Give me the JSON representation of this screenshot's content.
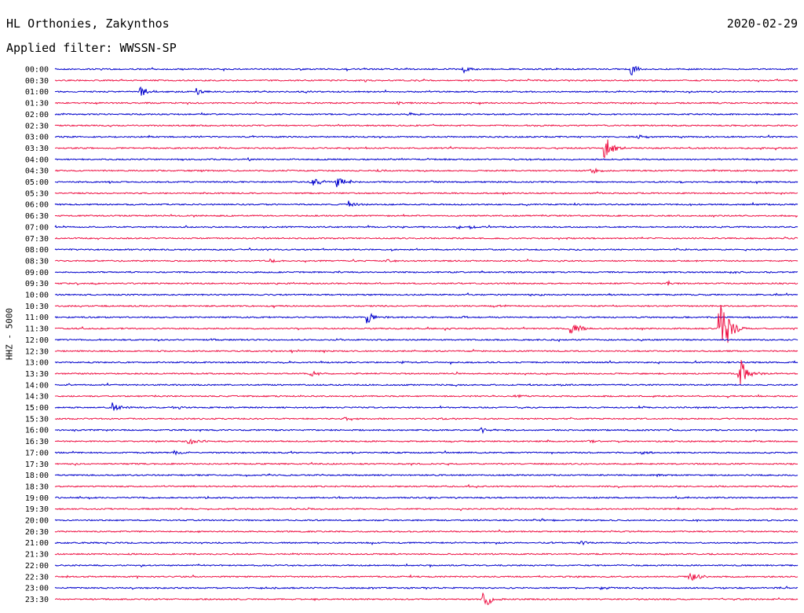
{
  "header": {
    "station": "HL Orthonies, Zakynthos",
    "date": "2020-02-29",
    "filter": "Applied filter: WWSSN-SP"
  },
  "chart_data": {
    "type": "line",
    "ylabel": "HHZ - 5000",
    "trace_colors": [
      "#0000cc",
      "#ee1144"
    ],
    "rows": [
      {
        "label": "00:00",
        "color": "#0000cc",
        "events": [
          {
            "x": 0.55,
            "amp": 4
          },
          {
            "x": 0.775,
            "amp": 9
          }
        ]
      },
      {
        "label": "00:30",
        "color": "#ee1144",
        "events": []
      },
      {
        "label": "01:00",
        "color": "#0000cc",
        "events": [
          {
            "x": 0.115,
            "amp": 7
          },
          {
            "x": 0.19,
            "amp": 5
          }
        ]
      },
      {
        "label": "01:30",
        "color": "#ee1144",
        "events": [
          {
            "x": 0.46,
            "amp": 3
          }
        ]
      },
      {
        "label": "02:00",
        "color": "#0000cc",
        "events": [
          {
            "x": 0.475,
            "amp": 2
          }
        ]
      },
      {
        "label": "02:30",
        "color": "#ee1144",
        "events": [
          {
            "x": 0.645,
            "amp": 2
          }
        ]
      },
      {
        "label": "03:00",
        "color": "#0000cc",
        "events": [
          {
            "x": 0.785,
            "amp": 3
          }
        ]
      },
      {
        "label": "03:30",
        "color": "#ee1144",
        "events": [
          {
            "x": 0.74,
            "amp": 18
          }
        ]
      },
      {
        "label": "04:00",
        "color": "#0000cc",
        "events": []
      },
      {
        "label": "04:30",
        "color": "#ee1144",
        "events": [
          {
            "x": 0.435,
            "amp": 2
          },
          {
            "x": 0.722,
            "amp": 4
          }
        ]
      },
      {
        "label": "05:00",
        "color": "#0000cc",
        "events": [
          {
            "x": 0.345,
            "amp": 9
          },
          {
            "x": 0.38,
            "amp": 8
          },
          {
            "x": 0.84,
            "amp": 3
          }
        ]
      },
      {
        "label": "05:30",
        "color": "#ee1144",
        "events": []
      },
      {
        "label": "06:00",
        "color": "#0000cc",
        "events": [
          {
            "x": 0.395,
            "amp": 5
          }
        ]
      },
      {
        "label": "06:30",
        "color": "#ee1144",
        "events": []
      },
      {
        "label": "07:00",
        "color": "#0000cc",
        "events": [
          {
            "x": 0.54,
            "amp": 3
          },
          {
            "x": 0.56,
            "amp": 3
          }
        ]
      },
      {
        "label": "07:30",
        "color": "#ee1144",
        "events": [
          {
            "x": 0.98,
            "amp": 2
          }
        ]
      },
      {
        "label": "08:00",
        "color": "#0000cc",
        "events": []
      },
      {
        "label": "08:30",
        "color": "#ee1144",
        "events": [
          {
            "x": 0.29,
            "amp": 3
          },
          {
            "x": 0.445,
            "amp": 2
          }
        ]
      },
      {
        "label": "09:00",
        "color": "#0000cc",
        "events": [
          {
            "x": 0.91,
            "amp": 2
          }
        ]
      },
      {
        "label": "09:30",
        "color": "#ee1144",
        "events": [
          {
            "x": 0.825,
            "amp": 3
          }
        ]
      },
      {
        "label": "10:00",
        "color": "#0000cc",
        "events": []
      },
      {
        "label": "10:30",
        "color": "#ee1144",
        "events": []
      },
      {
        "label": "11:00",
        "color": "#0000cc",
        "events": [
          {
            "x": 0.42,
            "amp": 8
          },
          {
            "x": 0.545,
            "amp": 2
          }
        ]
      },
      {
        "label": "11:30",
        "color": "#ee1144",
        "events": [
          {
            "x": 0.695,
            "amp": 12
          },
          {
            "x": 0.895,
            "amp": 64
          }
        ]
      },
      {
        "label": "12:00",
        "color": "#0000cc",
        "events": [
          {
            "x": 0.21,
            "amp": 2
          }
        ]
      },
      {
        "label": "12:30",
        "color": "#ee1144",
        "events": []
      },
      {
        "label": "13:00",
        "color": "#0000cc",
        "events": [
          {
            "x": 0.465,
            "amp": 2
          }
        ]
      },
      {
        "label": "13:30",
        "color": "#ee1144",
        "events": [
          {
            "x": 0.345,
            "amp": 5
          },
          {
            "x": 0.922,
            "amp": 24
          }
        ]
      },
      {
        "label": "14:00",
        "color": "#0000cc",
        "events": []
      },
      {
        "label": "14:30",
        "color": "#ee1144",
        "events": [
          {
            "x": 0.62,
            "amp": 2
          }
        ]
      },
      {
        "label": "15:00",
        "color": "#0000cc",
        "events": [
          {
            "x": 0.077,
            "amp": 7
          },
          {
            "x": 0.16,
            "amp": 3
          }
        ]
      },
      {
        "label": "15:30",
        "color": "#ee1144",
        "events": [
          {
            "x": 0.39,
            "amp": 2
          },
          {
            "x": 0.52,
            "amp": 2
          }
        ]
      },
      {
        "label": "16:00",
        "color": "#0000cc",
        "events": [
          {
            "x": 0.575,
            "amp": 4
          }
        ]
      },
      {
        "label": "16:30",
        "color": "#ee1144",
        "events": [
          {
            "x": 0.18,
            "amp": 4
          },
          {
            "x": 0.72,
            "amp": 3
          }
        ]
      },
      {
        "label": "17:00",
        "color": "#0000cc",
        "events": [
          {
            "x": 0.16,
            "amp": 3
          },
          {
            "x": 0.79,
            "amp": 2
          }
        ]
      },
      {
        "label": "17:30",
        "color": "#ee1144",
        "events": []
      },
      {
        "label": "18:00",
        "color": "#0000cc",
        "events": [
          {
            "x": 0.81,
            "amp": 2
          }
        ]
      },
      {
        "label": "18:30",
        "color": "#ee1144",
        "events": []
      },
      {
        "label": "19:00",
        "color": "#0000cc",
        "events": []
      },
      {
        "label": "19:30",
        "color": "#ee1144",
        "events": []
      },
      {
        "label": "20:00",
        "color": "#0000cc",
        "events": [
          {
            "x": 0.655,
            "amp": 2
          }
        ]
      },
      {
        "label": "20:30",
        "color": "#ee1144",
        "events": []
      },
      {
        "label": "21:00",
        "color": "#0000cc",
        "events": [
          {
            "x": 0.705,
            "amp": 4
          }
        ]
      },
      {
        "label": "21:30",
        "color": "#ee1144",
        "events": []
      },
      {
        "label": "22:00",
        "color": "#0000cc",
        "events": []
      },
      {
        "label": "22:30",
        "color": "#ee1144",
        "events": [
          {
            "x": 0.855,
            "amp": 8
          }
        ]
      },
      {
        "label": "23:00",
        "color": "#0000cc",
        "events": [
          {
            "x": 0.735,
            "amp": 2
          }
        ]
      },
      {
        "label": "23:30",
        "color": "#ee1144",
        "events": [
          {
            "x": 0.577,
            "amp": 14
          }
        ]
      }
    ]
  }
}
